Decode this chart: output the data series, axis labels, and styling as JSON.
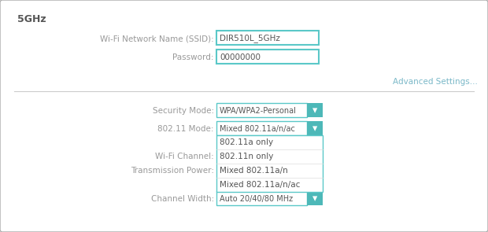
{
  "bg_color": "#ffffff",
  "outer_border_color": "#aaaaaa",
  "title_text": "5GHz",
  "title_color": "#555555",
  "label_color": "#999999",
  "input_border_color": "#5bc8c8",
  "input_text_color": "#555555",
  "advanced_color": "#7ab8c8",
  "divider_color": "#cccccc",
  "dropdown_bg": "#4db8b8",
  "dropdown_text": "#ffffff",
  "dropdown_border": "#5bc8c8",
  "dropdown_item_color": "#555555",
  "fields": [
    {
      "label": "Wi-Fi Network Name (SSID):",
      "value": "DIR510L_5GHz"
    },
    {
      "label": "Password:",
      "value": "00000000"
    }
  ],
  "advanced_text": "Advanced Settings...",
  "security_label": "Security Mode:",
  "security_value": "WPA/WPA2-Personal",
  "mode_label": "802.11 Mode:",
  "mode_value": "Mixed 802.11a/n/ac",
  "channel_label": "Wi-Fi Channel:",
  "power_label": "Transmission Power:",
  "width_label": "Channel Width:",
  "width_value": "Auto 20/40/80 MHz",
  "dropdown_items": [
    "802.11a only",
    "802.11n only",
    "Mixed 802.11a/n",
    "Mixed 802.11a/n/ac"
  ],
  "fig_width": 6.2,
  "fig_height": 2.95,
  "dpi": 100
}
